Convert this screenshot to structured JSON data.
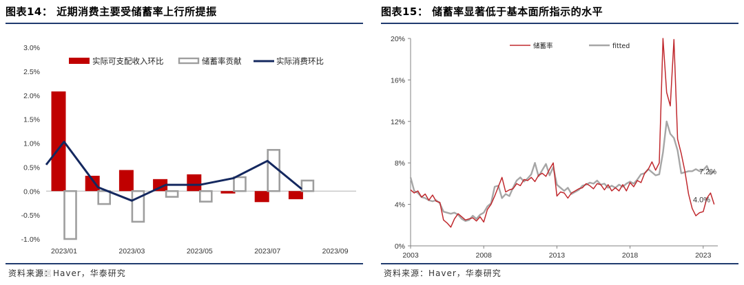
{
  "left": {
    "title": "图表14：  近期消费主要受储蓄率上行所提振",
    "source": "资料来源：Haver，华泰研究",
    "chart_data": {
      "type": "bar+line",
      "x": [
        "2023/01",
        "2023/02",
        "2023/03",
        "2023/04",
        "2023/05",
        "2023/06",
        "2023/07",
        "2023/08"
      ],
      "x_tick_labels": [
        "2023/01",
        "2023/03",
        "2023/05",
        "2023/07",
        "2023/09"
      ],
      "ylim": [
        -1.0,
        3.0
      ],
      "y_ticks": [
        "-1.0%",
        "-0.5%",
        "0.0%",
        "0.5%",
        "1.0%",
        "1.5%",
        "2.0%",
        "2.5%",
        "3.0%"
      ],
      "series": [
        {
          "name": "实际可支配收入环比",
          "kind": "bar",
          "color": "#c00000",
          "values": [
            2.08,
            0.32,
            0.44,
            0.25,
            0.35,
            -0.05,
            -0.23,
            -0.17
          ]
        },
        {
          "name": "储蓄率贡献",
          "kind": "bar-outline",
          "color": "#9e9e9e",
          "values": [
            -1.0,
            -0.27,
            -0.64,
            -0.12,
            -0.22,
            0.29,
            0.86,
            0.22
          ]
        },
        {
          "name": "实际消费环比",
          "kind": "line",
          "color": "#14285f",
          "values": [
            1.03,
            0.08,
            -0.2,
            0.13,
            0.13,
            0.27,
            0.63,
            0.05
          ]
        }
      ],
      "start_value": 0.55,
      "grid": false,
      "legend": "top"
    }
  },
  "right": {
    "title": "图表15：  储蓄率显著低于基本面所指示的水平",
    "source": "资料来源：Haver，华泰研究",
    "chart_data": {
      "type": "line",
      "x_range": [
        2003,
        2024
      ],
      "x_tick_labels": [
        "2003",
        "2008",
        "2013",
        "2018",
        "2023"
      ],
      "ylim": [
        0,
        20
      ],
      "y_ticks": [
        "0%",
        "4%",
        "8%",
        "12%",
        "16%",
        "20%"
      ],
      "legend": "top-center",
      "annotations": [
        "7.2%",
        "4.0%"
      ],
      "series": [
        {
          "name": "储蓄率",
          "color": "#c0282d",
          "points": [
            [
              2003.0,
              5.4
            ],
            [
              2003.25,
              5.1
            ],
            [
              2003.5,
              5.3
            ],
            [
              2003.75,
              4.7
            ],
            [
              2004.0,
              5.0
            ],
            [
              2004.25,
              4.4
            ],
            [
              2004.5,
              4.9
            ],
            [
              2004.75,
              4.3
            ],
            [
              2005.0,
              4.2
            ],
            [
              2005.25,
              2.5
            ],
            [
              2005.5,
              2.2
            ],
            [
              2005.75,
              1.8
            ],
            [
              2006.0,
              2.6
            ],
            [
              2006.25,
              3.1
            ],
            [
              2006.5,
              2.8
            ],
            [
              2006.75,
              2.5
            ],
            [
              2007.0,
              2.6
            ],
            [
              2007.25,
              2.7
            ],
            [
              2007.5,
              2.4
            ],
            [
              2007.75,
              2.8
            ],
            [
              2008.0,
              2.3
            ],
            [
              2008.25,
              3.5
            ],
            [
              2008.5,
              4.0
            ],
            [
              2008.75,
              4.8
            ],
            [
              2009.0,
              5.7
            ],
            [
              2009.25,
              6.6
            ],
            [
              2009.5,
              5.2
            ],
            [
              2009.75,
              5.4
            ],
            [
              2010.0,
              5.5
            ],
            [
              2010.25,
              6.0
            ],
            [
              2010.5,
              5.8
            ],
            [
              2010.75,
              6.4
            ],
            [
              2011.0,
              6.3
            ],
            [
              2011.25,
              6.6
            ],
            [
              2011.5,
              6.2
            ],
            [
              2011.75,
              6.8
            ],
            [
              2012.0,
              7.0
            ],
            [
              2012.25,
              6.7
            ],
            [
              2012.5,
              7.4
            ],
            [
              2012.75,
              8.0
            ],
            [
              2013.0,
              4.8
            ],
            [
              2013.25,
              5.2
            ],
            [
              2013.5,
              5.1
            ],
            [
              2013.75,
              4.6
            ],
            [
              2014.0,
              5.1
            ],
            [
              2014.25,
              5.3
            ],
            [
              2014.5,
              5.5
            ],
            [
              2014.75,
              5.6
            ],
            [
              2015.0,
              6.0
            ],
            [
              2015.25,
              5.8
            ],
            [
              2015.5,
              5.5
            ],
            [
              2015.75,
              6.0
            ],
            [
              2016.0,
              5.9
            ],
            [
              2016.25,
              5.4
            ],
            [
              2016.5,
              5.9
            ],
            [
              2016.75,
              5.3
            ],
            [
              2017.0,
              5.6
            ],
            [
              2017.25,
              5.3
            ],
            [
              2017.5,
              5.9
            ],
            [
              2017.75,
              5.3
            ],
            [
              2018.0,
              6.1
            ],
            [
              2018.25,
              5.7
            ],
            [
              2018.5,
              6.3
            ],
            [
              2018.75,
              6.1
            ],
            [
              2019.0,
              7.0
            ],
            [
              2019.25,
              7.4
            ],
            [
              2019.5,
              8.1
            ],
            [
              2019.75,
              7.3
            ],
            [
              2020.0,
              8.0
            ],
            [
              2020.25,
              20.0
            ],
            [
              2020.5,
              14.8
            ],
            [
              2020.75,
              13.5
            ],
            [
              2021.0,
              19.9
            ],
            [
              2021.25,
              10.3
            ],
            [
              2021.5,
              8.9
            ],
            [
              2021.75,
              7.2
            ],
            [
              2022.0,
              5.0
            ],
            [
              2022.25,
              3.6
            ],
            [
              2022.5,
              2.9
            ],
            [
              2022.75,
              3.2
            ],
            [
              2023.0,
              3.3
            ],
            [
              2023.25,
              4.6
            ],
            [
              2023.5,
              5.1
            ],
            [
              2023.75,
              4.0
            ]
          ]
        },
        {
          "name": "fitted",
          "color": "#a6a6a6",
          "points": [
            [
              2003.0,
              6.6
            ],
            [
              2003.25,
              5.3
            ],
            [
              2003.5,
              5.1
            ],
            [
              2003.75,
              4.7
            ],
            [
              2004.0,
              4.6
            ],
            [
              2004.25,
              4.4
            ],
            [
              2004.5,
              4.3
            ],
            [
              2004.75,
              4.4
            ],
            [
              2005.0,
              4.1
            ],
            [
              2005.25,
              3.3
            ],
            [
              2005.5,
              3.2
            ],
            [
              2005.75,
              3.1
            ],
            [
              2006.0,
              3.2
            ],
            [
              2006.25,
              3.0
            ],
            [
              2006.5,
              2.6
            ],
            [
              2006.75,
              2.4
            ],
            [
              2007.0,
              2.5
            ],
            [
              2007.25,
              2.9
            ],
            [
              2007.5,
              2.6
            ],
            [
              2007.75,
              3.0
            ],
            [
              2008.0,
              3.2
            ],
            [
              2008.25,
              3.8
            ],
            [
              2008.5,
              4.1
            ],
            [
              2008.75,
              5.7
            ],
            [
              2009.0,
              5.8
            ],
            [
              2009.25,
              4.6
            ],
            [
              2009.5,
              5.0
            ],
            [
              2009.75,
              4.8
            ],
            [
              2010.0,
              5.6
            ],
            [
              2010.25,
              6.3
            ],
            [
              2010.5,
              6.6
            ],
            [
              2010.75,
              6.2
            ],
            [
              2011.0,
              6.5
            ],
            [
              2011.25,
              6.9
            ],
            [
              2011.5,
              8.0
            ],
            [
              2011.75,
              6.7
            ],
            [
              2012.0,
              7.3
            ],
            [
              2012.25,
              7.9
            ],
            [
              2012.5,
              6.8
            ],
            [
              2012.75,
              7.6
            ],
            [
              2013.0,
              5.9
            ],
            [
              2013.25,
              5.6
            ],
            [
              2013.5,
              5.3
            ],
            [
              2013.75,
              5.6
            ],
            [
              2014.0,
              5.0
            ],
            [
              2014.25,
              5.2
            ],
            [
              2014.5,
              5.4
            ],
            [
              2014.75,
              5.8
            ],
            [
              2015.0,
              5.9
            ],
            [
              2015.25,
              6.1
            ],
            [
              2015.5,
              6.0
            ],
            [
              2015.75,
              6.3
            ],
            [
              2016.0,
              5.9
            ],
            [
              2016.25,
              6.0
            ],
            [
              2016.5,
              5.6
            ],
            [
              2016.75,
              5.8
            ],
            [
              2017.0,
              5.6
            ],
            [
              2017.25,
              5.9
            ],
            [
              2017.5,
              5.7
            ],
            [
              2017.75,
              6.0
            ],
            [
              2018.0,
              6.2
            ],
            [
              2018.25,
              6.0
            ],
            [
              2018.5,
              6.4
            ],
            [
              2018.75,
              6.9
            ],
            [
              2019.0,
              7.0
            ],
            [
              2019.25,
              7.4
            ],
            [
              2019.5,
              7.1
            ],
            [
              2019.75,
              6.8
            ],
            [
              2020.0,
              6.9
            ],
            [
              2020.25,
              9.0
            ],
            [
              2020.5,
              12.0
            ],
            [
              2020.75,
              10.8
            ],
            [
              2021.0,
              10.4
            ],
            [
              2021.25,
              9.2
            ],
            [
              2021.5,
              7.0
            ],
            [
              2021.75,
              7.1
            ],
            [
              2022.0,
              7.2
            ],
            [
              2022.25,
              7.2
            ],
            [
              2022.5,
              7.4
            ],
            [
              2022.75,
              7.2
            ],
            [
              2023.0,
              7.3
            ],
            [
              2023.25,
              7.7
            ],
            [
              2023.5,
              6.9
            ],
            [
              2023.75,
              7.2
            ]
          ]
        }
      ]
    }
  },
  "watermark": {
    "text": "大数据"
  }
}
